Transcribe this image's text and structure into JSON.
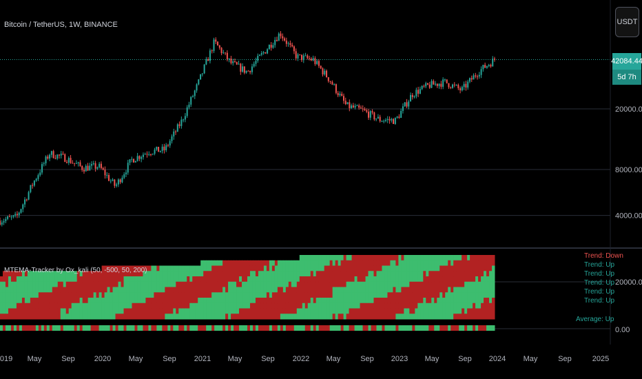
{
  "symbol_title": "Bitcoin / TetherUS, 1W, BINANCE",
  "currency_button": "USDT",
  "last_price": "42084.44",
  "countdown": "5d 7h",
  "indicator_title": "MTEMA-Tracker by Ox_kali (50, -500, 50, 200)",
  "colors": {
    "up": "#26a69a",
    "down": "#ef5350",
    "green_block": "#3dbd6f",
    "red_block": "#b22222",
    "grid": "#2a2e39"
  },
  "chart_data": [
    {
      "type": "candlestick",
      "scale": "log",
      "yticks": [
        "20000.00",
        "8000.00",
        "4000.00"
      ],
      "ytick_values": [
        20000,
        8000,
        4000
      ],
      "x": [
        "2019-01",
        "2019-03",
        "2019-05",
        "2019-07",
        "2019-09",
        "2019-11",
        "2020-01",
        "2020-03",
        "2020-05",
        "2020-07",
        "2020-09",
        "2020-11",
        "2021-01",
        "2021-03",
        "2021-05",
        "2021-07",
        "2021-09",
        "2021-11",
        "2022-01",
        "2022-03",
        "2022-05",
        "2022-07",
        "2022-09",
        "2022-11",
        "2023-01",
        "2023-03",
        "2023-05",
        "2023-07",
        "2023-09",
        "2023-11",
        "2023-12"
      ],
      "y": [
        3700,
        3900,
        6500,
        10200,
        9500,
        8200,
        8400,
        6200,
        9300,
        10500,
        10800,
        16500,
        29000,
        55000,
        40000,
        35000,
        47000,
        63000,
        44000,
        42000,
        31000,
        21000,
        19500,
        17000,
        16800,
        25000,
        28500,
        30000,
        26500,
        35000,
        42084
      ]
    },
    {
      "type": "heatmap",
      "yticks": [
        "20000.00",
        "0.00"
      ],
      "status_labels": [
        "Trend: Down",
        "Trend: Up",
        "Trend: Up",
        "Trend: Up",
        "Trend: Up",
        "Trend: Up"
      ],
      "summary": "Average: Up"
    }
  ],
  "xaxis_labels": [
    "2019",
    "May",
    "Sep",
    "2020",
    "May",
    "Sep",
    "2021",
    "May",
    "Sep",
    "2022",
    "May",
    "Sep",
    "2023",
    "May",
    "Sep",
    "2024",
    "May",
    "Sep",
    "2025"
  ]
}
